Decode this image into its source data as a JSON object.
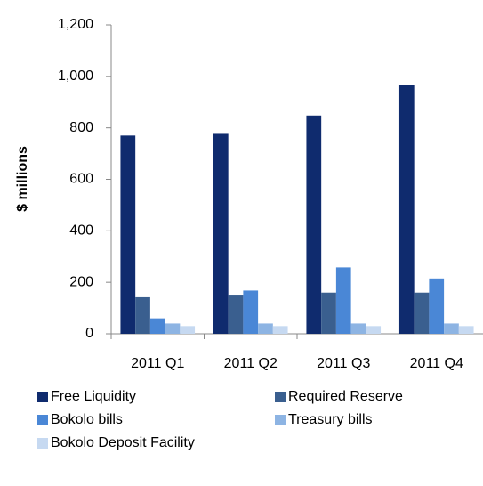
{
  "chart_data": {
    "type": "bar",
    "y_label": "$ millions",
    "categories": [
      "2011 Q1",
      "2011 Q2",
      "2011 Q3",
      "2011 Q4"
    ],
    "series": [
      {
        "name": "Free Liquidity",
        "color": "#0f2b6e",
        "values": [
          770,
          780,
          848,
          968
        ]
      },
      {
        "name": "Required Reserve",
        "color": "#3a5f8f",
        "values": [
          142,
          152,
          160,
          160
        ]
      },
      {
        "name": "Bokolo bills",
        "color": "#4a87d6",
        "values": [
          60,
          168,
          258,
          215
        ]
      },
      {
        "name": "Treasury bills",
        "color": "#8db4e3",
        "values": [
          40,
          40,
          40,
          40
        ]
      },
      {
        "name": "Bokolo Deposit Facility",
        "color": "#c6d9f1",
        "values": [
          30,
          30,
          30,
          30
        ]
      }
    ],
    "ylim": [
      0,
      1200
    ],
    "yticks": [
      0,
      200,
      400,
      600,
      800,
      {
        "value": 1000,
        "label": "1,000"
      },
      {
        "value": 1200,
        "label": "1,200"
      }
    ],
    "grid": false
  }
}
